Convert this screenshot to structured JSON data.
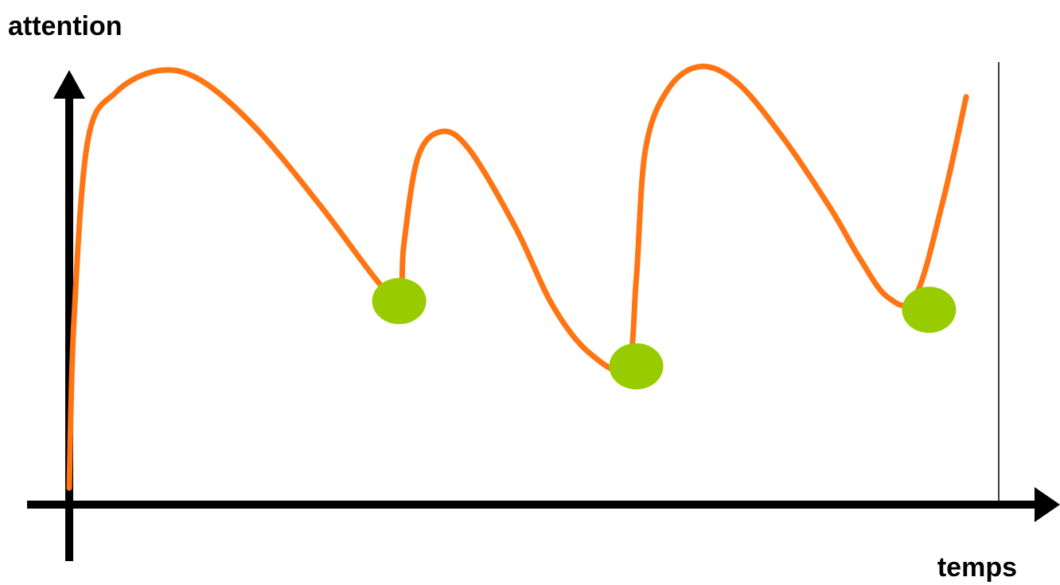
{
  "chart_data": {
    "type": "line",
    "title": "",
    "xlabel": "temps",
    "ylabel": "attention",
    "xlim": [
      0,
      100
    ],
    "ylim": [
      0,
      100
    ],
    "grid": false,
    "legend": "none",
    "colors": {
      "line": "#ff7514",
      "marker": "#99cc00",
      "axis": "#000000"
    },
    "series": [
      {
        "values": [
          {
            "x": 0,
            "y": 2
          },
          {
            "x": 0.5,
            "y": 40
          },
          {
            "x": 2,
            "y": 82
          },
          {
            "x": 5,
            "y": 93
          },
          {
            "x": 9.5,
            "y": 98
          },
          {
            "x": 14,
            "y": 96
          },
          {
            "x": 20,
            "y": 85
          },
          {
            "x": 27,
            "y": 67
          },
          {
            "x": 33,
            "y": 50
          },
          {
            "x": 35.5,
            "y": 45
          },
          {
            "x": 36,
            "y": 58
          },
          {
            "x": 37.5,
            "y": 78
          },
          {
            "x": 40,
            "y": 84
          },
          {
            "x": 43,
            "y": 80
          },
          {
            "x": 48,
            "y": 62
          },
          {
            "x": 52,
            "y": 44
          },
          {
            "x": 56,
            "y": 33
          },
          {
            "x": 60,
            "y": 30
          },
          {
            "x": 61,
            "y": 50
          },
          {
            "x": 62,
            "y": 80
          },
          {
            "x": 64.5,
            "y": 94
          },
          {
            "x": 68,
            "y": 99
          },
          {
            "x": 72,
            "y": 95
          },
          {
            "x": 77,
            "y": 82
          },
          {
            "x": 82,
            "y": 66
          },
          {
            "x": 85,
            "y": 55
          },
          {
            "x": 88,
            "y": 46
          },
          {
            "x": 91,
            "y": 46
          },
          {
            "x": 94,
            "y": 68
          },
          {
            "x": 96.5,
            "y": 92
          }
        ]
      }
    ],
    "markers": [
      {
        "x": 35.5,
        "y": 45
      },
      {
        "x": 61,
        "y": 30
      },
      {
        "x": 92.5,
        "y": 43
      }
    ]
  }
}
